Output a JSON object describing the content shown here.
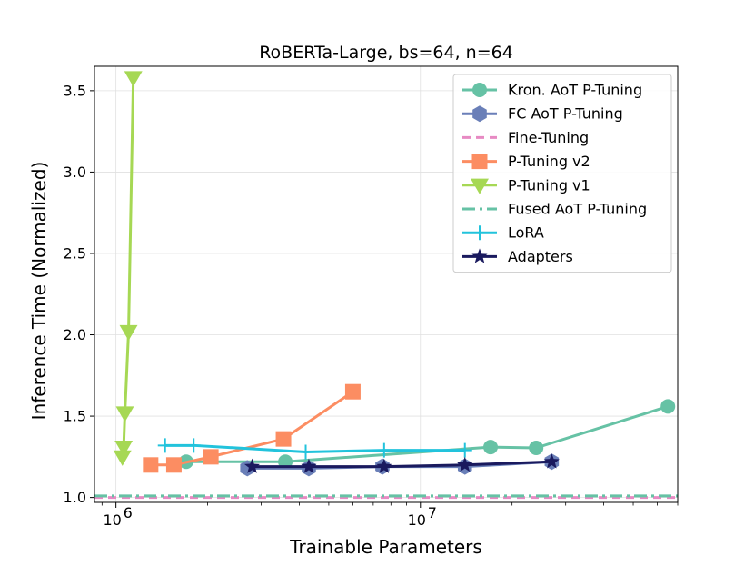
{
  "chart_data": {
    "type": "line",
    "title": "RoBERTa-Large, bs=64, n=64",
    "xlabel": "Trainable Parameters",
    "ylabel": "Inference Time (Normalized)",
    "xscale": "log",
    "xlim": [
      850000,
      70000000
    ],
    "ylim": [
      0.97,
      3.65
    ],
    "x_major_ticks": [
      1000000,
      10000000
    ],
    "x_major_tick_labels": [
      [
        "10",
        "6"
      ],
      [
        "10",
        "7"
      ]
    ],
    "y_ticks": [
      1.0,
      1.5,
      2.0,
      2.5,
      3.0,
      3.5
    ],
    "y_tick_labels": [
      "1.0",
      "1.5",
      "2.0",
      "2.5",
      "3.0",
      "3.5"
    ],
    "grid": true,
    "legend_position": "upper right",
    "series": [
      {
        "name": "Kron. AoT P-Tuning",
        "color": "#66c2a5",
        "marker": "circle",
        "x": [
          1700000,
          3600000,
          17000000,
          24000000,
          65000000
        ],
        "y": [
          1.22,
          1.22,
          1.31,
          1.305,
          1.56
        ]
      },
      {
        "name": "FC AoT P-Tuning",
        "color": "#6a7fb8",
        "marker": "hexagon",
        "x": [
          2700000,
          4300000,
          7500000,
          14000000,
          27000000
        ],
        "y": [
          1.18,
          1.18,
          1.19,
          1.19,
          1.22
        ]
      },
      {
        "name": "Fine-Tuning",
        "color": "#e78ac3",
        "marker": "none",
        "linestyle": "dashed",
        "hline": 1.0
      },
      {
        "name": "P-Tuning v2",
        "color": "#fc8d62",
        "marker": "square",
        "x": [
          1300000,
          1550000,
          2050000,
          3550000,
          6000000
        ],
        "y": [
          1.2,
          1.2,
          1.25,
          1.36,
          1.65
        ]
      },
      {
        "name": "P-Tuning v1",
        "color": "#a6d854",
        "marker": "triangle-down",
        "x": [
          1050000,
          1060000,
          1070000,
          1100000,
          1140000
        ],
        "y": [
          1.25,
          1.31,
          1.52,
          2.02,
          3.58
        ]
      },
      {
        "name": "Fused AoT P-Tuning",
        "color": "#66c2a5",
        "marker": "none",
        "linestyle": "dashdot",
        "hline": 1.01
      },
      {
        "name": "LoRA",
        "color": "#22c3dc",
        "marker": "plus",
        "x": [
          1450000,
          1800000,
          4200000,
          7600000,
          14000000
        ],
        "y": [
          1.32,
          1.32,
          1.28,
          1.29,
          1.29
        ]
      },
      {
        "name": "Adapters",
        "color": "#1a1a5e",
        "marker": "star",
        "x": [
          2800000,
          4300000,
          7600000,
          14000000,
          27000000
        ],
        "y": [
          1.19,
          1.19,
          1.19,
          1.2,
          1.22
        ]
      }
    ]
  }
}
